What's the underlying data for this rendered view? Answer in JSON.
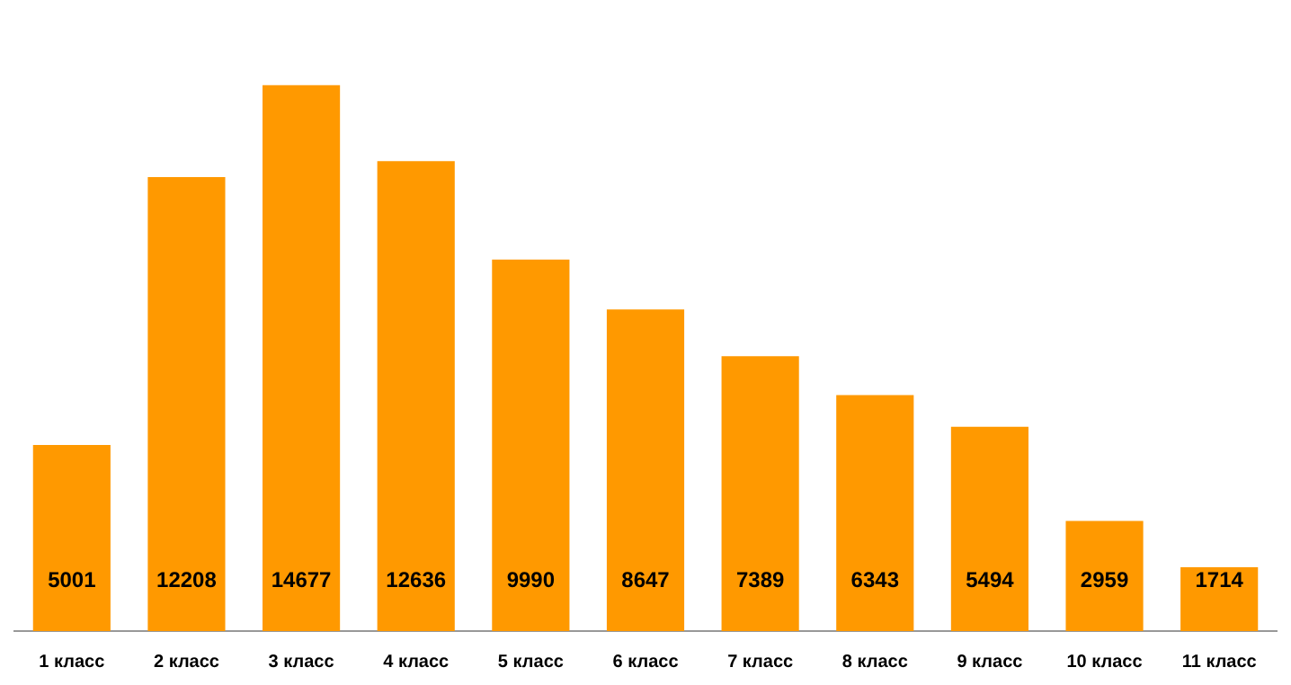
{
  "chart_data": {
    "type": "bar",
    "categories": [
      "1 класс",
      "2 класс",
      "3 класс",
      "4 класс",
      "5 класс",
      "6 класс",
      "7 класс",
      "8 класс",
      "9 класс",
      "10 класс",
      "11 класс"
    ],
    "values": [
      5001,
      12208,
      14677,
      12636,
      9990,
      8647,
      7389,
      6343,
      5494,
      2959,
      1714
    ],
    "color": "#ff9900",
    "data_labels": true,
    "grid": false,
    "legend": false,
    "tick_labels": "x"
  }
}
